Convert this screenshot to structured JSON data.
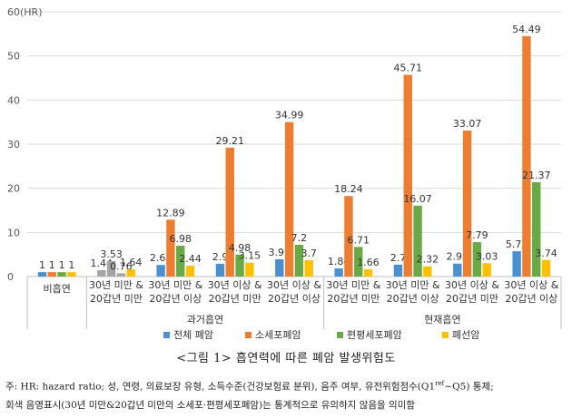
{
  "chart_data": {
    "type": "bar",
    "y_unit_label": "(HR)",
    "ylim": [
      0,
      60
    ],
    "yticks": [
      0,
      10,
      20,
      30,
      40,
      50,
      60
    ],
    "grid": true,
    "legend_position": "bottom",
    "categories": [
      {
        "label_lines": [
          "비흡연"
        ],
        "group": ""
      },
      {
        "label_lines": [
          "30년 미만 &",
          "20갑년 미만"
        ],
        "group": "과거흡연"
      },
      {
        "label_lines": [
          "30년 미만 &",
          "20갑년 이상"
        ],
        "group": "과거흡연"
      },
      {
        "label_lines": [
          "30년 이상 &",
          "20갑년 미만"
        ],
        "group": "과거흡연"
      },
      {
        "label_lines": [
          "30년 이상 &",
          "20갑년 이상"
        ],
        "group": "과거흡연"
      },
      {
        "label_lines": [
          "30년 미만 &",
          "20갑년 미만"
        ],
        "group": "현재흡연"
      },
      {
        "label_lines": [
          "30년 미만 &",
          "20갑년 이상"
        ],
        "group": "현재흡연"
      },
      {
        "label_lines": [
          "30년 이상 &",
          "20갑년 미만"
        ],
        "group": "현재흡연"
      },
      {
        "label_lines": [
          "30년 이상 &",
          "20갑년 이상"
        ],
        "group": "현재흡연"
      }
    ],
    "groups": [
      "과거흡연",
      "현재흡연"
    ],
    "series": [
      {
        "name": "전체 폐암",
        "color": "#4a8fd0",
        "values": [
          1,
          1.44,
          2.62,
          2.9,
          3.91,
          1.84,
          2.7,
          2.93,
          5.73
        ]
      },
      {
        "name": "소세포폐암",
        "color": "#ed7d31",
        "values": [
          1,
          3.53,
          12.89,
          29.21,
          34.99,
          18.24,
          45.71,
          33.07,
          54.49
        ]
      },
      {
        "name": "편평세포폐암",
        "color": "#6aaa46",
        "values": [
          1,
          0.76,
          6.98,
          4.98,
          7.2,
          6.71,
          16.07,
          7.79,
          21.37
        ]
      },
      {
        "name": "폐선암",
        "color": "#ffc000",
        "values": [
          1,
          1.64,
          2.44,
          3.15,
          3.7,
          1.66,
          2.32,
          3.03,
          3.74
        ]
      }
    ],
    "grey_color": "#a5a5a5",
    "grey_bars": [
      [
        1,
        0
      ],
      [
        1,
        1
      ],
      [
        1,
        2
      ]
    ],
    "data_labels": [
      [
        "1",
        "1",
        "1",
        "1"
      ],
      [
        "1.44",
        "3.53",
        "0.76",
        "1.64"
      ],
      [
        "2.62",
        "12.89",
        "6.98",
        "2.44"
      ],
      [
        "2.9",
        "29.21",
        "4.98",
        "3.15"
      ],
      [
        "3.91",
        "34.99",
        "7.2",
        "3.7"
      ],
      [
        "1.84",
        "18.24",
        "6.71",
        "1.66"
      ],
      [
        "2.7",
        "45.71",
        "16.07",
        "2.32"
      ],
      [
        "2.93",
        "33.07",
        "7.79",
        "3.03"
      ],
      [
        "5.73",
        "54.49",
        "21.37",
        "3.74"
      ]
    ]
  },
  "caption": "<그림 1> 흡연력에 따른 폐암 발생위험도",
  "note": {
    "line1_before_sup": "주: HR: hazard ratio; 성, 연령, 의료보장 유형, 소득수준(건강보험료 분위), 음주 여부, 유전위험점수(Q1",
    "line1_sup": "ref",
    "line1_after_sup": "~Q5) 통제;",
    "line2": "회색 음영표시(30년 미만&20갑년 미만의 소세포·편평세포폐암)는 통계적으로 유의하지 않음을 의미함"
  }
}
